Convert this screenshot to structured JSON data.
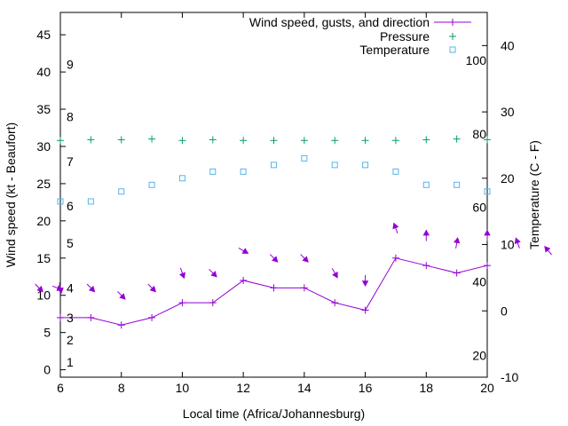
{
  "chart_data": {
    "type": "line",
    "xlabel": "Local time (Africa/Johannesburg)",
    "ylabel_left": "Wind speed (kt - Beaufort)",
    "ylabel_right": "Temperature (C - F)",
    "xlim": [
      6,
      20
    ],
    "ylim_left": [
      -1,
      48
    ],
    "ylim_right": [
      -10,
      45
    ],
    "x_ticks": [
      6,
      8,
      10,
      12,
      14,
      16,
      18,
      20
    ],
    "y_left_ticks": [
      0,
      5,
      10,
      15,
      20,
      25,
      30,
      35,
      40,
      45
    ],
    "y_right_ticks": [
      -10,
      0,
      10,
      20,
      30,
      40
    ],
    "beaufort_labels": [
      {
        "label": "1",
        "kt": 1
      },
      {
        "label": "2",
        "kt": 4
      },
      {
        "label": "3",
        "kt": 7
      },
      {
        "label": "4",
        "kt": 11
      },
      {
        "label": "5",
        "kt": 17
      },
      {
        "label": "6",
        "kt": 22
      },
      {
        "label": "7",
        "kt": 28
      },
      {
        "label": "8",
        "kt": 34
      },
      {
        "label": "9",
        "kt": 41
      }
    ],
    "fahrenheit_labels": [
      {
        "label": "20",
        "c": -6.7
      },
      {
        "label": "40",
        "c": 4.4
      },
      {
        "label": "60",
        "c": 15.6
      },
      {
        "label": "80",
        "c": 26.7
      },
      {
        "label": "100",
        "c": 37.8
      }
    ],
    "legend": [
      "Wind speed, gusts, and direction",
      "Pressure",
      "Temperature"
    ],
    "legend_position": "top-right",
    "colors": {
      "wind": "#9400d3",
      "pressure": "#009e73",
      "temperature": "#56b4e9"
    },
    "series": [
      {
        "name": "Wind speed, gusts, and direction",
        "axis": "left",
        "x": [
          6,
          7,
          8,
          9,
          10,
          11,
          12,
          13,
          14,
          15,
          16,
          17,
          18,
          19,
          20
        ],
        "values": [
          7,
          7,
          6,
          7,
          9,
          9,
          12,
          11,
          11,
          9,
          8,
          15,
          14,
          13,
          14
        ]
      },
      {
        "name": "Pressure",
        "axis": "left",
        "x": [
          6,
          7,
          8,
          9,
          10,
          11,
          12,
          13,
          14,
          15,
          16,
          17,
          18,
          19,
          20
        ],
        "values": [
          30.8,
          30.9,
          30.9,
          31.0,
          30.8,
          30.9,
          30.8,
          30.8,
          30.8,
          30.8,
          30.8,
          30.8,
          30.9,
          31.0,
          30.9
        ]
      },
      {
        "name": "Temperature",
        "axis": "right",
        "x": [
          6,
          7,
          8,
          9,
          10,
          11,
          12,
          13,
          14,
          15,
          16,
          17,
          18,
          19,
          20
        ],
        "values": [
          16.5,
          16.5,
          18,
          19,
          20,
          21,
          21,
          22,
          23,
          22,
          22,
          21,
          19,
          19,
          18
        ]
      }
    ],
    "gust_arrows": [
      {
        "x": 5.3,
        "kt": 11,
        "dir_deg": 45
      },
      {
        "x": 5.9,
        "kt": 11,
        "dir_deg": 70
      },
      {
        "x": 6.0,
        "kt": 11,
        "dir_deg": 10
      },
      {
        "x": 7.0,
        "kt": 11,
        "dir_deg": 45
      },
      {
        "x": 8.0,
        "kt": 10,
        "dir_deg": 45
      },
      {
        "x": 9.0,
        "kt": 11,
        "dir_deg": 45
      },
      {
        "x": 10.0,
        "kt": 13,
        "dir_deg": 20
      },
      {
        "x": 11.0,
        "kt": 13,
        "dir_deg": 45
      },
      {
        "x": 12.0,
        "kt": 16,
        "dir_deg": 60
      },
      {
        "x": 13.0,
        "kt": 15,
        "dir_deg": 45
      },
      {
        "x": 14.0,
        "kt": 15,
        "dir_deg": 45
      },
      {
        "x": 15.0,
        "kt": 13,
        "dir_deg": 30
      },
      {
        "x": 16.0,
        "kt": 12,
        "dir_deg": 0
      },
      {
        "x": 17.0,
        "kt": 19,
        "dir_deg": 200
      },
      {
        "x": 18.0,
        "kt": 18,
        "dir_deg": 180
      },
      {
        "x": 19.0,
        "kt": 17,
        "dir_deg": 170
      },
      {
        "x": 20.0,
        "kt": 18,
        "dir_deg": 180
      },
      {
        "x": 21.0,
        "kt": 17,
        "dir_deg": 200
      },
      {
        "x": 22.0,
        "kt": 16,
        "dir_deg": 220
      }
    ]
  }
}
